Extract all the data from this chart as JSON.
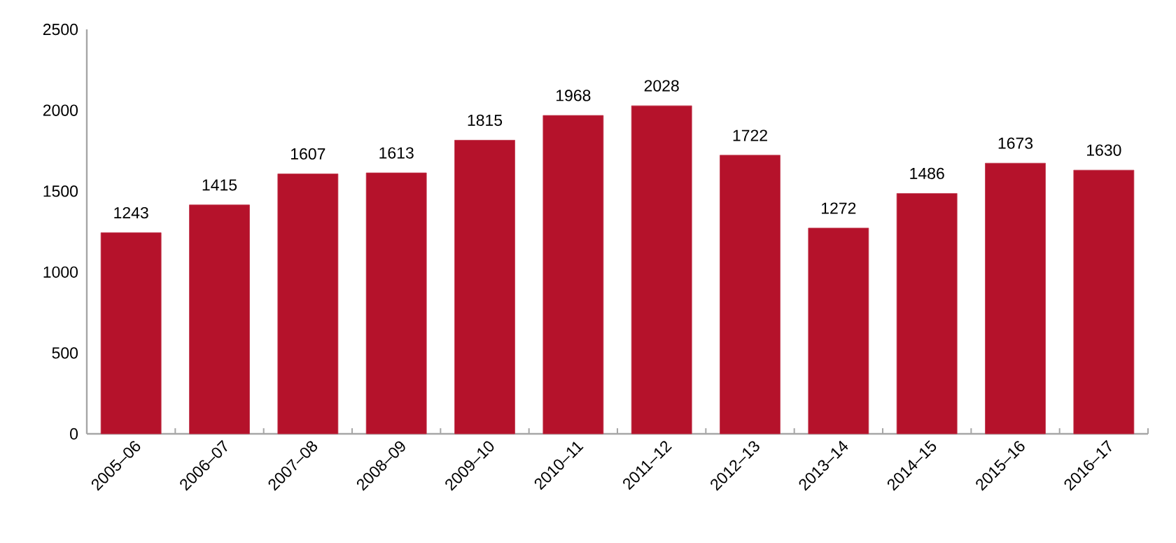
{
  "chart_data": {
    "type": "bar",
    "categories": [
      "2005–06",
      "2006–07",
      "2007–08",
      "2008–09",
      "2009–10",
      "2010–11",
      "2011–12",
      "2012–13",
      "2013–14",
      "2014–15",
      "2015–16",
      "2016–17"
    ],
    "values": [
      1243,
      1415,
      1607,
      1613,
      1815,
      1968,
      2028,
      1722,
      1272,
      1486,
      1673,
      1630
    ],
    "color": "#b5122b",
    "ylim": [
      0,
      2500
    ],
    "yticks": [
      0,
      500,
      1000,
      1500,
      2000,
      2500
    ],
    "data_labels": true
  }
}
